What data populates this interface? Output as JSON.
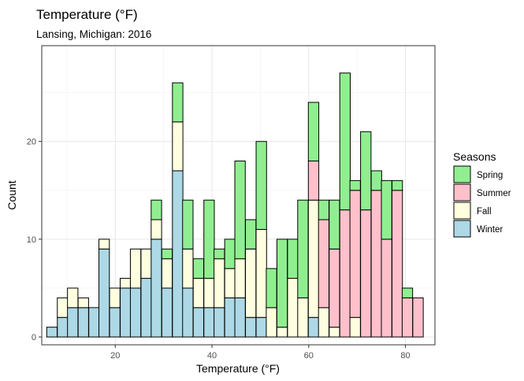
{
  "chart_data": {
    "type": "bar",
    "stacked": true,
    "title": "Temperature (°F)",
    "subtitle": "Lansing, Michigan: 2016",
    "xlabel": "Temperature (°F)",
    "ylabel": "Count",
    "xlim": [
      4.8,
      86.1
    ],
    "ylim": [
      -0.8,
      29.8
    ],
    "x_ticks": [
      20,
      40,
      60,
      80
    ],
    "y_ticks": [
      0,
      10,
      20
    ],
    "grid": true,
    "legend": {
      "title": "Seasons",
      "position": "right"
    },
    "bin_width": 2.16,
    "bin_centers": [
      6.9,
      9.1,
      11.2,
      13.4,
      15.6,
      17.7,
      19.9,
      22.1,
      24.2,
      26.4,
      28.5,
      30.7,
      32.9,
      35.0,
      37.2,
      39.4,
      41.5,
      43.7,
      45.8,
      48.0,
      50.2,
      52.3,
      54.5,
      56.7,
      58.8,
      61.0,
      63.1,
      65.3,
      67.5,
      69.6,
      71.8,
      74.0,
      76.1,
      78.3,
      80.4,
      82.6
    ],
    "series": [
      {
        "name": "Winter",
        "color": "#add8e6",
        "values": [
          1,
          2,
          3,
          3,
          3,
          9,
          3,
          5,
          5,
          6,
          10,
          5,
          17,
          5,
          3,
          3,
          3,
          4,
          4,
          2,
          2,
          0,
          0,
          0,
          0,
          2,
          0,
          0,
          0,
          0,
          0,
          0,
          0,
          0,
          0,
          0
        ]
      },
      {
        "name": "Fall",
        "color": "#ffffe0",
        "values": [
          0,
          2,
          2,
          1,
          0,
          1,
          2,
          1,
          4,
          3,
          2,
          3,
          5,
          4,
          3,
          3,
          5,
          3,
          4,
          7,
          9,
          3,
          1,
          6,
          4,
          12,
          3,
          1,
          0,
          2,
          0,
          0,
          0,
          0,
          0,
          0
        ]
      },
      {
        "name": "Summer",
        "color": "#ffc0cb",
        "values": [
          0,
          0,
          0,
          0,
          0,
          0,
          0,
          0,
          0,
          0,
          0,
          0,
          0,
          0,
          0,
          0,
          0,
          0,
          0,
          0,
          0,
          0,
          0,
          0,
          0,
          4,
          9,
          8,
          13,
          13,
          13,
          15,
          10,
          15,
          4,
          4
        ]
      },
      {
        "name": "Spring",
        "color": "#90ee90",
        "values": [
          0,
          0,
          0,
          0,
          0,
          0,
          0,
          0,
          0,
          0,
          2,
          1,
          4,
          5,
          2,
          8,
          1,
          3,
          10,
          3,
          9,
          4,
          9,
          4,
          10,
          6,
          2,
          5,
          14,
          1,
          8,
          2,
          6,
          1,
          1,
          0
        ]
      }
    ],
    "legend_order": [
      "Spring",
      "Summer",
      "Fall",
      "Winter"
    ]
  }
}
